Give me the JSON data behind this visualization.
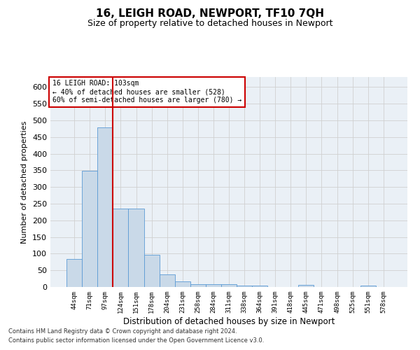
{
  "title": "16, LEIGH ROAD, NEWPORT, TF10 7QH",
  "subtitle": "Size of property relative to detached houses in Newport",
  "xlabel": "Distribution of detached houses by size in Newport",
  "ylabel": "Number of detached properties",
  "footer_line1": "Contains HM Land Registry data © Crown copyright and database right 2024.",
  "footer_line2": "Contains public sector information licensed under the Open Government Licence v3.0.",
  "bar_color": "#c9d9e8",
  "bar_edge_color": "#5b9bd5",
  "grid_color": "#d0d0d0",
  "background_color": "#eaf0f6",
  "vline_color": "#cc0000",
  "vline_x": 2.5,
  "annotation_text_line1": "16 LEIGH ROAD: 103sqm",
  "annotation_text_line2": "← 40% of detached houses are smaller (528)",
  "annotation_text_line3": "60% of semi-detached houses are larger (780) →",
  "annotation_box_color": "#ffffff",
  "annotation_box_edge_color": "#cc0000",
  "categories": [
    "44sqm",
    "71sqm",
    "97sqm",
    "124sqm",
    "151sqm",
    "178sqm",
    "204sqm",
    "231sqm",
    "258sqm",
    "284sqm",
    "311sqm",
    "338sqm",
    "364sqm",
    "391sqm",
    "418sqm",
    "445sqm",
    "471sqm",
    "498sqm",
    "525sqm",
    "551sqm",
    "578sqm"
  ],
  "values": [
    83,
    348,
    478,
    235,
    235,
    96,
    37,
    17,
    8,
    8,
    8,
    5,
    5,
    0,
    0,
    6,
    0,
    0,
    0,
    5,
    0
  ],
  "ylim": [
    0,
    630
  ],
  "yticks": [
    0,
    50,
    100,
    150,
    200,
    250,
    300,
    350,
    400,
    450,
    500,
    550,
    600
  ],
  "title_fontsize": 11,
  "subtitle_fontsize": 9,
  "ylabel_fontsize": 8,
  "xlabel_fontsize": 8.5,
  "ytick_fontsize": 8,
  "xtick_fontsize": 6.5
}
